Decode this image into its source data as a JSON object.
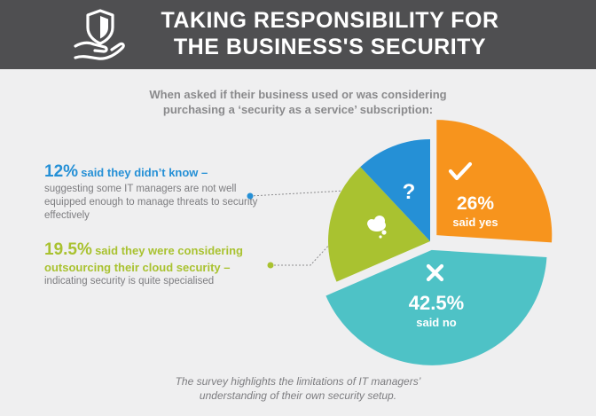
{
  "header": {
    "title_line1": "TAKING RESPONSIBILITY FOR",
    "title_line2": "THE BUSINESS'S SECURITY",
    "icon": "shield-in-hand-icon"
  },
  "subtitle": {
    "line1": "When asked if their business used or was considering",
    "line2": "purchasing a ‘security as a service’ subscription:"
  },
  "notes": {
    "dont_know": {
      "percent": "12%",
      "headline": "said they didn’t know –",
      "body": "suggesting some IT managers are not well equipped enough to manage threats to security effectively"
    },
    "considering": {
      "percent": "19.5%",
      "headline1": "said they were considering",
      "headline2": "outsourcing their cloud security –",
      "body": "indicating security is quite specialised"
    }
  },
  "footer": {
    "line1": "The survey highlights the limitations of IT managers’",
    "line2": "understanding of their own security setup."
  },
  "chart_data": {
    "type": "pie",
    "unit": "%",
    "slices": [
      {
        "label": "said yes",
        "value": 26,
        "display": "26%",
        "color": "#f7941d",
        "icon": "check-icon",
        "explode": true
      },
      {
        "label": "said no",
        "value": 42.5,
        "display": "42.5%",
        "color": "#4ec2c6",
        "icon": "cross-icon",
        "explode": true
      },
      {
        "label": "considering outsourcing",
        "value": 19.5,
        "display": "",
        "color": "#a9c230",
        "icon": "cloud-icon",
        "explode": false
      },
      {
        "label": "didn't know",
        "value": 12,
        "display": "",
        "color": "#2590d6",
        "icon": "question-icon",
        "explode": false
      }
    ]
  }
}
